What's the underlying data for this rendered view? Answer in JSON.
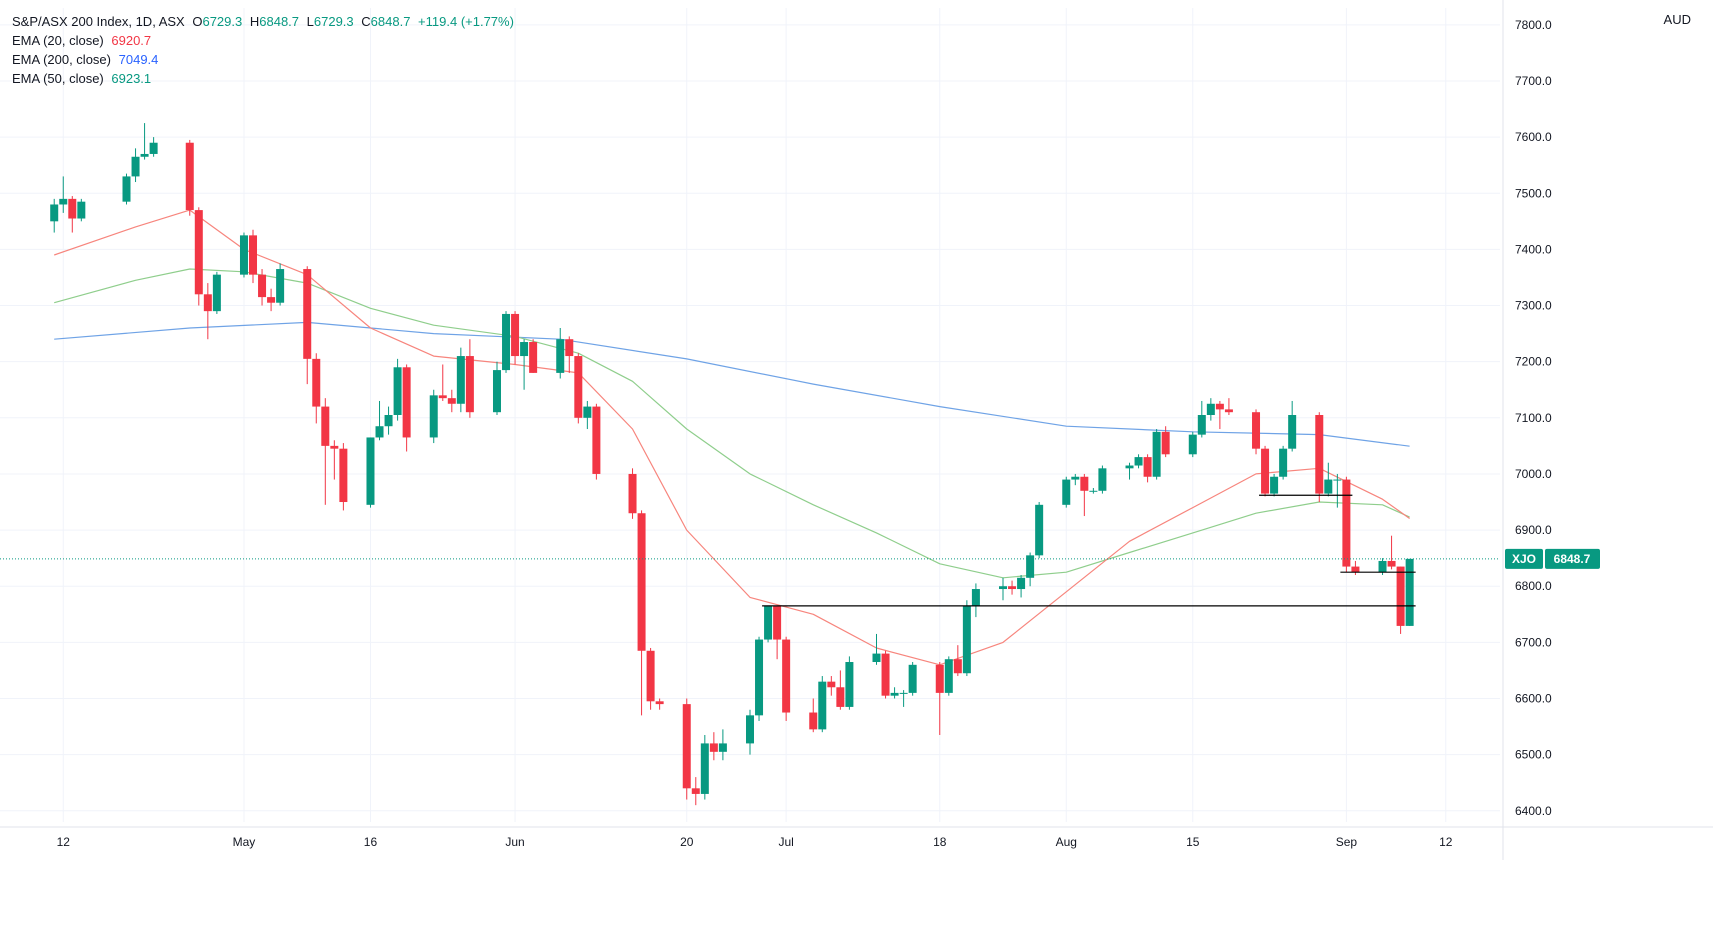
{
  "header": {
    "symbol_title": "S&P/ASX 200 Index, 1D, ASX",
    "ohlc": {
      "o_label": "O",
      "o_value": "6729.3",
      "h_label": "H",
      "h_value": "6848.7",
      "l_label": "L",
      "l_value": "6729.3",
      "c_label": "C",
      "c_value": "6848.7",
      "change": "+119.4 (+1.77%)"
    },
    "indicators": [
      {
        "label": "EMA (20, close)",
        "value": "6920.7",
        "color": "#f23645"
      },
      {
        "label": "EMA (200, close)",
        "value": "7049.4",
        "color": "#2962ff"
      },
      {
        "label": "EMA (50, close)",
        "value": "6923.1",
        "color": "#089981"
      }
    ],
    "currency": "AUD"
  },
  "price_tag": {
    "symbol": "XJO",
    "value": "6848.7"
  },
  "colors": {
    "up": "#089981",
    "down": "#f23645",
    "ema20": "#f7857d",
    "ema50": "#8fce8c",
    "ema200": "#6fa3e6",
    "last_line": "#089981",
    "grid": "#f0f3fa",
    "axis_text": "#131722"
  },
  "chart_data": {
    "type": "candlestick",
    "title": "S&P/ASX 200 Index, 1D, ASX",
    "ylabel": "AUD",
    "ylim": [
      6380,
      7830
    ],
    "y_ticks": [
      "7800.0",
      "7700.0",
      "7600.0",
      "7500.0",
      "7400.0",
      "7300.0",
      "7200.0",
      "7100.0",
      "7000.0",
      "6900.0",
      "6800.0",
      "6700.0",
      "6600.0",
      "6500.0",
      "6400.0"
    ],
    "x_ticks": [
      {
        "label": "12",
        "date": "2022-04-12"
      },
      {
        "label": "May",
        "date": "2022-05-02"
      },
      {
        "label": "16",
        "date": "2022-05-16"
      },
      {
        "label": "Jun",
        "date": "2022-06-01"
      },
      {
        "label": "20",
        "date": "2022-06-20"
      },
      {
        "label": "Jul",
        "date": "2022-07-01"
      },
      {
        "label": "18",
        "date": "2022-07-18"
      },
      {
        "label": "Aug",
        "date": "2022-08-01"
      },
      {
        "label": "15",
        "date": "2022-08-15"
      },
      {
        "label": "Sep",
        "date": "2022-09-01"
      },
      {
        "label": "12",
        "date": "2022-09-12"
      }
    ],
    "candles": [
      {
        "date": "2022-04-11",
        "o": 7450,
        "h": 7490,
        "l": 7430,
        "c": 7480
      },
      {
        "date": "2022-04-12",
        "o": 7480,
        "h": 7530,
        "l": 7465,
        "c": 7490
      },
      {
        "date": "2022-04-13",
        "o": 7490,
        "h": 7495,
        "l": 7430,
        "c": 7455
      },
      {
        "date": "2022-04-14",
        "o": 7455,
        "h": 7490,
        "l": 7450,
        "c": 7485
      },
      {
        "date": "2022-04-19",
        "o": 7485,
        "h": 7535,
        "l": 7480,
        "c": 7530
      },
      {
        "date": "2022-04-20",
        "o": 7530,
        "h": 7580,
        "l": 7520,
        "c": 7565
      },
      {
        "date": "2022-04-21",
        "o": 7565,
        "h": 7625,
        "l": 7560,
        "c": 7570
      },
      {
        "date": "2022-04-22",
        "o": 7570,
        "h": 7600,
        "l": 7565,
        "c": 7590
      },
      {
        "date": "2022-04-26",
        "o": 7590,
        "h": 7595,
        "l": 7460,
        "c": 7470
      },
      {
        "date": "2022-04-27",
        "o": 7470,
        "h": 7475,
        "l": 7300,
        "c": 7320
      },
      {
        "date": "2022-04-28",
        "o": 7320,
        "h": 7340,
        "l": 7240,
        "c": 7290
      },
      {
        "date": "2022-04-29",
        "o": 7290,
        "h": 7360,
        "l": 7285,
        "c": 7355
      },
      {
        "date": "2022-05-02",
        "o": 7355,
        "h": 7430,
        "l": 7350,
        "c": 7425
      },
      {
        "date": "2022-05-03",
        "o": 7425,
        "h": 7435,
        "l": 7340,
        "c": 7355
      },
      {
        "date": "2022-05-04",
        "o": 7355,
        "h": 7365,
        "l": 7300,
        "c": 7315
      },
      {
        "date": "2022-05-05",
        "o": 7315,
        "h": 7330,
        "l": 7290,
        "c": 7305
      },
      {
        "date": "2022-05-06",
        "o": 7305,
        "h": 7375,
        "l": 7300,
        "c": 7365
      },
      {
        "date": "2022-05-09",
        "o": 7365,
        "h": 7370,
        "l": 7160,
        "c": 7205
      },
      {
        "date": "2022-05-10",
        "o": 7205,
        "h": 7215,
        "l": 7090,
        "c": 7120
      },
      {
        "date": "2022-05-11",
        "o": 7120,
        "h": 7135,
        "l": 6945,
        "c": 7050
      },
      {
        "date": "2022-05-12",
        "o": 7050,
        "h": 7060,
        "l": 6990,
        "c": 7045
      },
      {
        "date": "2022-05-13",
        "o": 7045,
        "h": 7055,
        "l": 6935,
        "c": 6950
      },
      {
        "date": "2022-05-16",
        "o": 6945,
        "h": 7065,
        "l": 6940,
        "c": 7065
      },
      {
        "date": "2022-05-17",
        "o": 7065,
        "h": 7130,
        "l": 7060,
        "c": 7085
      },
      {
        "date": "2022-05-18",
        "o": 7085,
        "h": 7120,
        "l": 7070,
        "c": 7105
      },
      {
        "date": "2022-05-19",
        "o": 7105,
        "h": 7205,
        "l": 7095,
        "c": 7190
      },
      {
        "date": "2022-05-20",
        "o": 7190,
        "h": 7195,
        "l": 7040,
        "c": 7065
      },
      {
        "date": "2022-05-23",
        "o": 7065,
        "h": 7150,
        "l": 7055,
        "c": 7140
      },
      {
        "date": "2022-05-24",
        "o": 7140,
        "h": 7195,
        "l": 7130,
        "c": 7135
      },
      {
        "date": "2022-05-25",
        "o": 7135,
        "h": 7150,
        "l": 7110,
        "c": 7125
      },
      {
        "date": "2022-05-26",
        "o": 7125,
        "h": 7225,
        "l": 7110,
        "c": 7210
      },
      {
        "date": "2022-05-27",
        "o": 7210,
        "h": 7240,
        "l": 7100,
        "c": 7110
      },
      {
        "date": "2022-05-30",
        "o": 7110,
        "h": 7200,
        "l": 7105,
        "c": 7185
      },
      {
        "date": "2022-05-31",
        "o": 7185,
        "h": 7290,
        "l": 7180,
        "c": 7285
      },
      {
        "date": "2022-06-01",
        "o": 7285,
        "h": 7290,
        "l": 7195,
        "c": 7210
      },
      {
        "date": "2022-06-02",
        "o": 7210,
        "h": 7240,
        "l": 7150,
        "c": 7235
      },
      {
        "date": "2022-06-03",
        "o": 7235,
        "h": 7240,
        "l": 7180,
        "c": 7180
      },
      {
        "date": "2022-06-06",
        "o": 7180,
        "h": 7260,
        "l": 7170,
        "c": 7240
      },
      {
        "date": "2022-06-07",
        "o": 7240,
        "h": 7245,
        "l": 7180,
        "c": 7210
      },
      {
        "date": "2022-06-08",
        "o": 7210,
        "h": 7215,
        "l": 7090,
        "c": 7100
      },
      {
        "date": "2022-06-09",
        "o": 7100,
        "h": 7130,
        "l": 7080,
        "c": 7120
      },
      {
        "date": "2022-06-10",
        "o": 7120,
        "h": 7125,
        "l": 6990,
        "c": 7000
      },
      {
        "date": "2022-06-14",
        "o": 7000,
        "h": 7010,
        "l": 6920,
        "c": 6930
      },
      {
        "date": "2022-06-15",
        "o": 6930,
        "h": 6935,
        "l": 6570,
        "c": 6685
      },
      {
        "date": "2022-06-16",
        "o": 6685,
        "h": 6690,
        "l": 6580,
        "c": 6595
      },
      {
        "date": "2022-06-17",
        "o": 6595,
        "h": 6600,
        "l": 6580,
        "c": 6590
      },
      {
        "date": "2022-06-20",
        "o": 6590,
        "h": 6600,
        "l": 6420,
        "c": 6440
      },
      {
        "date": "2022-06-21",
        "o": 6440,
        "h": 6460,
        "l": 6410,
        "c": 6430
      },
      {
        "date": "2022-06-22",
        "o": 6430,
        "h": 6535,
        "l": 6420,
        "c": 6520
      },
      {
        "date": "2022-06-23",
        "o": 6520,
        "h": 6540,
        "l": 6490,
        "c": 6505
      },
      {
        "date": "2022-06-24",
        "o": 6505,
        "h": 6545,
        "l": 6490,
        "c": 6520
      },
      {
        "date": "2022-06-27",
        "o": 6520,
        "h": 6580,
        "l": 6500,
        "c": 6570
      },
      {
        "date": "2022-06-28",
        "o": 6570,
        "h": 6710,
        "l": 6560,
        "c": 6705
      },
      {
        "date": "2022-06-29",
        "o": 6705,
        "h": 6765,
        "l": 6700,
        "c": 6765
      },
      {
        "date": "2022-06-30",
        "o": 6765,
        "h": 6765,
        "l": 6670,
        "c": 6705
      },
      {
        "date": "2022-07-01",
        "o": 6705,
        "h": 6710,
        "l": 6560,
        "c": 6575
      },
      {
        "date": "2022-07-04",
        "o": 6575,
        "h": 6600,
        "l": 6540,
        "c": 6545
      },
      {
        "date": "2022-07-05",
        "o": 6545,
        "h": 6640,
        "l": 6540,
        "c": 6630
      },
      {
        "date": "2022-07-06",
        "o": 6630,
        "h": 6640,
        "l": 6605,
        "c": 6620
      },
      {
        "date": "2022-07-07",
        "o": 6620,
        "h": 6650,
        "l": 6580,
        "c": 6585
      },
      {
        "date": "2022-07-08",
        "o": 6585,
        "h": 6675,
        "l": 6580,
        "c": 6665
      },
      {
        "date": "2022-07-11",
        "o": 6665,
        "h": 6715,
        "l": 6660,
        "c": 6680
      },
      {
        "date": "2022-07-12",
        "o": 6680,
        "h": 6685,
        "l": 6600,
        "c": 6605
      },
      {
        "date": "2022-07-13",
        "o": 6605,
        "h": 6620,
        "l": 6600,
        "c": 6610
      },
      {
        "date": "2022-07-14",
        "o": 6610,
        "h": 6615,
        "l": 6585,
        "c": 6610
      },
      {
        "date": "2022-07-15",
        "o": 6610,
        "h": 6665,
        "l": 6605,
        "c": 6660
      },
      {
        "date": "2022-07-18",
        "o": 6660,
        "h": 6665,
        "l": 6535,
        "c": 6610
      },
      {
        "date": "2022-07-19",
        "o": 6610,
        "h": 6675,
        "l": 6605,
        "c": 6670
      },
      {
        "date": "2022-07-20",
        "o": 6670,
        "h": 6695,
        "l": 6640,
        "c": 6645
      },
      {
        "date": "2022-07-21",
        "o": 6645,
        "h": 6775,
        "l": 6640,
        "c": 6765
      },
      {
        "date": "2022-07-22",
        "o": 6765,
        "h": 6805,
        "l": 6745,
        "c": 6795
      },
      {
        "date": "2022-07-25",
        "o": 6795,
        "h": 6815,
        "l": 6775,
        "c": 6800
      },
      {
        "date": "2022-07-26",
        "o": 6800,
        "h": 6810,
        "l": 6785,
        "c": 6795
      },
      {
        "date": "2022-07-27",
        "o": 6795,
        "h": 6820,
        "l": 6780,
        "c": 6815
      },
      {
        "date": "2022-07-28",
        "o": 6815,
        "h": 6860,
        "l": 6800,
        "c": 6855
      },
      {
        "date": "2022-07-29",
        "o": 6855,
        "h": 6950,
        "l": 6850,
        "c": 6945
      },
      {
        "date": "2022-08-01",
        "o": 6945,
        "h": 6995,
        "l": 6940,
        "c": 6990
      },
      {
        "date": "2022-08-02",
        "o": 6990,
        "h": 7000,
        "l": 6980,
        "c": 6995
      },
      {
        "date": "2022-08-03",
        "o": 6995,
        "h": 7000,
        "l": 6925,
        "c": 6970
      },
      {
        "date": "2022-08-04",
        "o": 6970,
        "h": 6975,
        "l": 6965,
        "c": 6970
      },
      {
        "date": "2022-08-05",
        "o": 6970,
        "h": 7015,
        "l": 6965,
        "c": 7010
      },
      {
        "date": "2022-08-08",
        "o": 7010,
        "h": 7020,
        "l": 6990,
        "c": 7015
      },
      {
        "date": "2022-08-09",
        "o": 7015,
        "h": 7035,
        "l": 7010,
        "c": 7030
      },
      {
        "date": "2022-08-10",
        "o": 7030,
        "h": 7035,
        "l": 6985,
        "c": 6995
      },
      {
        "date": "2022-08-11",
        "o": 6995,
        "h": 7080,
        "l": 6990,
        "c": 7075
      },
      {
        "date": "2022-08-12",
        "o": 7075,
        "h": 7085,
        "l": 7030,
        "c": 7035
      },
      {
        "date": "2022-08-15",
        "o": 7035,
        "h": 7075,
        "l": 7030,
        "c": 7070
      },
      {
        "date": "2022-08-16",
        "o": 7070,
        "h": 7130,
        "l": 7065,
        "c": 7105
      },
      {
        "date": "2022-08-17",
        "o": 7105,
        "h": 7135,
        "l": 7095,
        "c": 7125
      },
      {
        "date": "2022-08-18",
        "o": 7125,
        "h": 7130,
        "l": 7080,
        "c": 7115
      },
      {
        "date": "2022-08-19",
        "o": 7115,
        "h": 7135,
        "l": 7105,
        "c": 7110
      },
      {
        "date": "2022-08-22",
        "o": 7110,
        "h": 7115,
        "l": 7035,
        "c": 7045
      },
      {
        "date": "2022-08-23",
        "o": 7045,
        "h": 7050,
        "l": 6960,
        "c": 6965
      },
      {
        "date": "2022-08-24",
        "o": 6965,
        "h": 7000,
        "l": 6960,
        "c": 6995
      },
      {
        "date": "2022-08-25",
        "o": 6995,
        "h": 7050,
        "l": 6990,
        "c": 7045
      },
      {
        "date": "2022-08-26",
        "o": 7045,
        "h": 7130,
        "l": 7040,
        "c": 7105
      },
      {
        "date": "2022-08-29",
        "o": 7105,
        "h": 7110,
        "l": 6950,
        "c": 6965
      },
      {
        "date": "2022-08-30",
        "o": 6965,
        "h": 7020,
        "l": 6960,
        "c": 6990
      },
      {
        "date": "2022-08-31",
        "o": 6990,
        "h": 7000,
        "l": 6940,
        "c": 6990
      },
      {
        "date": "2022-09-01",
        "o": 6990,
        "h": 6995,
        "l": 6825,
        "c": 6835
      },
      {
        "date": "2022-09-02",
        "o": 6835,
        "h": 6845,
        "l": 6820,
        "c": 6825
      },
      {
        "date": "2022-09-05",
        "o": 6825,
        "h": 6850,
        "l": 6820,
        "c": 6845
      },
      {
        "date": "2022-09-06",
        "o": 6845,
        "h": 6890,
        "l": 6830,
        "c": 6835
      },
      {
        "date": "2022-09-07",
        "o": 6835,
        "h": 6835,
        "l": 6715,
        "c": 6729.3
      },
      {
        "date": "2022-09-08",
        "o": 6729.3,
        "h": 6848.7,
        "l": 6729.3,
        "c": 6848.7
      }
    ],
    "ema20": [
      [
        "2022-04-11",
        7390
      ],
      [
        "2022-04-20",
        7440
      ],
      [
        "2022-04-26",
        7470
      ],
      [
        "2022-05-02",
        7400
      ],
      [
        "2022-05-09",
        7355
      ],
      [
        "2022-05-16",
        7260
      ],
      [
        "2022-05-23",
        7210
      ],
      [
        "2022-06-01",
        7195
      ],
      [
        "2022-06-08",
        7180
      ],
      [
        "2022-06-14",
        7080
      ],
      [
        "2022-06-20",
        6900
      ],
      [
        "2022-06-27",
        6780
      ],
      [
        "2022-07-04",
        6750
      ],
      [
        "2022-07-11",
        6690
      ],
      [
        "2022-07-18",
        6660
      ],
      [
        "2022-07-25",
        6700
      ],
      [
        "2022-08-01",
        6790
      ],
      [
        "2022-08-08",
        6880
      ],
      [
        "2022-08-15",
        6940
      ],
      [
        "2022-08-22",
        7000
      ],
      [
        "2022-08-29",
        7010
      ],
      [
        "2022-09-05",
        6955
      ],
      [
        "2022-09-08",
        6920.7
      ]
    ],
    "ema50": [
      [
        "2022-04-11",
        7305
      ],
      [
        "2022-04-20",
        7345
      ],
      [
        "2022-04-26",
        7365
      ],
      [
        "2022-05-02",
        7360
      ],
      [
        "2022-05-09",
        7340
      ],
      [
        "2022-05-16",
        7295
      ],
      [
        "2022-05-23",
        7265
      ],
      [
        "2022-06-01",
        7245
      ],
      [
        "2022-06-08",
        7215
      ],
      [
        "2022-06-14",
        7165
      ],
      [
        "2022-06-20",
        7080
      ],
      [
        "2022-06-27",
        7000
      ],
      [
        "2022-07-04",
        6945
      ],
      [
        "2022-07-11",
        6895
      ],
      [
        "2022-07-18",
        6840
      ],
      [
        "2022-07-25",
        6815
      ],
      [
        "2022-08-01",
        6825
      ],
      [
        "2022-08-08",
        6860
      ],
      [
        "2022-08-15",
        6895
      ],
      [
        "2022-08-22",
        6930
      ],
      [
        "2022-08-29",
        6950
      ],
      [
        "2022-09-05",
        6945
      ],
      [
        "2022-09-08",
        6923.1
      ]
    ],
    "ema200": [
      [
        "2022-04-11",
        7240
      ],
      [
        "2022-04-26",
        7260
      ],
      [
        "2022-05-09",
        7270
      ],
      [
        "2022-05-23",
        7250
      ],
      [
        "2022-06-06",
        7240
      ],
      [
        "2022-06-20",
        7205
      ],
      [
        "2022-07-04",
        7160
      ],
      [
        "2022-07-18",
        7120
      ],
      [
        "2022-08-01",
        7085
      ],
      [
        "2022-08-15",
        7075
      ],
      [
        "2022-08-29",
        7070
      ],
      [
        "2022-09-08",
        7049.4
      ]
    ],
    "horizontal_lines": [
      {
        "y": 6962,
        "from": "2022-08-23",
        "to": "2022-09-01"
      },
      {
        "y": 6825,
        "from": "2022-09-01",
        "to": "2022-09-08"
      },
      {
        "y": 6765,
        "from": "2022-06-29",
        "to": "2022-09-08"
      }
    ],
    "last_price": 6848.7,
    "grid": true
  }
}
